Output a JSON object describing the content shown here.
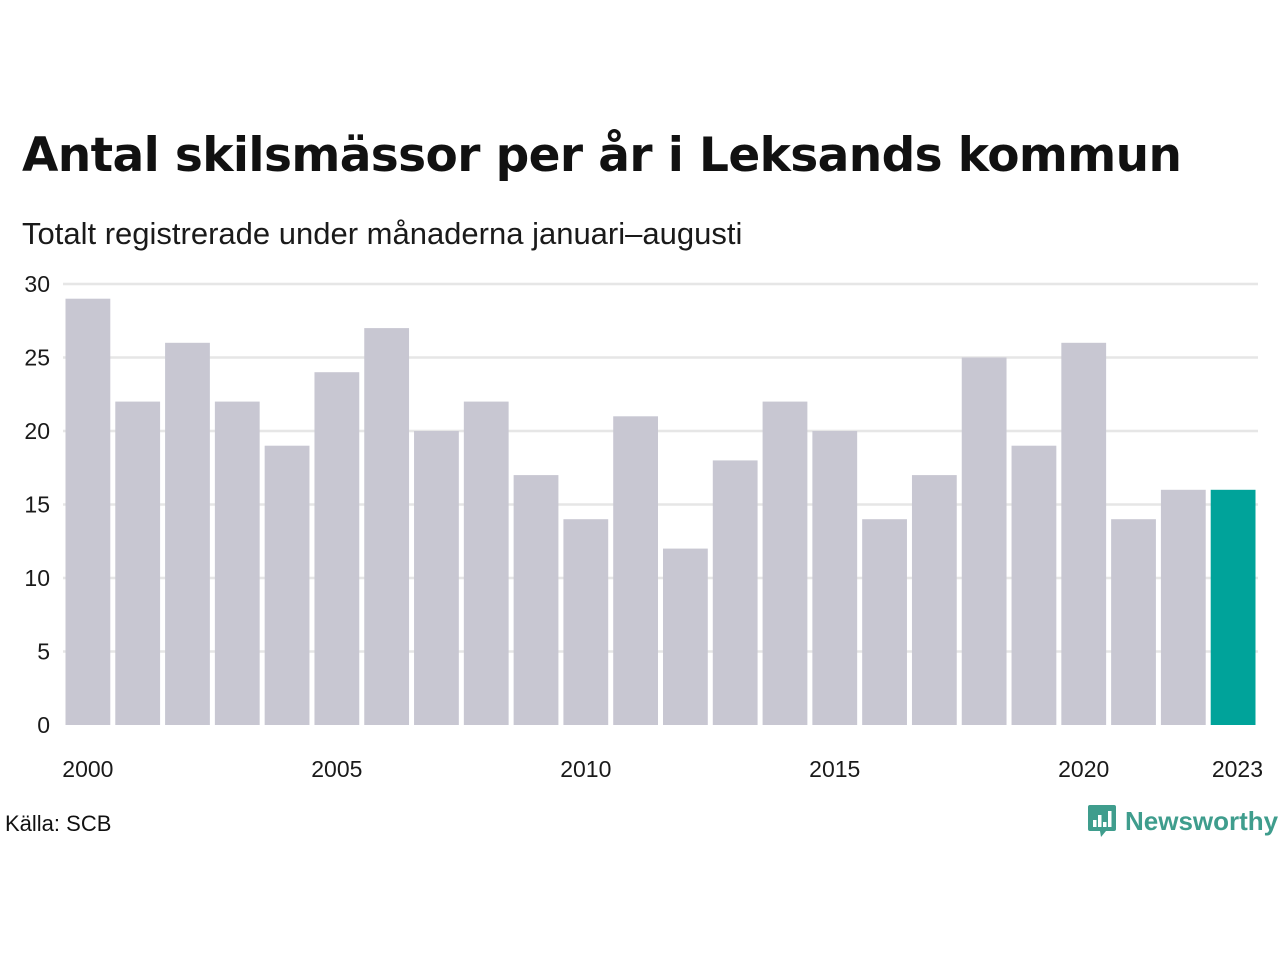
{
  "colors": {
    "bar": "#c8c7d2",
    "highlight": "#00a39a",
    "grid": "#e6e6e6",
    "brand": "#3f9d8d"
  },
  "chart_data": {
    "type": "bar",
    "title": "Antal skilsmässor per år i Leksands kommun",
    "subtitle": "Totalt registrerade under månaderna januari–augusti",
    "categories": [
      "2000",
      "2001",
      "2002",
      "2003",
      "2004",
      "2005",
      "2006",
      "2007",
      "2008",
      "2009",
      "2010",
      "2011",
      "2012",
      "2013",
      "2014",
      "2015",
      "2016",
      "2017",
      "2018",
      "2019",
      "2020",
      "2021",
      "2022",
      "2023"
    ],
    "values": [
      29,
      22,
      26,
      22,
      19,
      24,
      27,
      20,
      22,
      17,
      14,
      21,
      12,
      18,
      22,
      20,
      14,
      17,
      25,
      19,
      26,
      14,
      16,
      16
    ],
    "highlight_category": "2023",
    "x_tick_labels": [
      "2000",
      "2005",
      "2010",
      "2015",
      "2020",
      "2023"
    ],
    "y_ticks": [
      0,
      5,
      10,
      15,
      20,
      25,
      30
    ],
    "ylim": [
      0,
      30
    ],
    "grid": true,
    "xlabel": "",
    "ylabel": ""
  },
  "footer": {
    "source": "Källa: SCB",
    "brand": "Newsworthy",
    "brand_icon": "bar-chart-bubble-icon"
  }
}
